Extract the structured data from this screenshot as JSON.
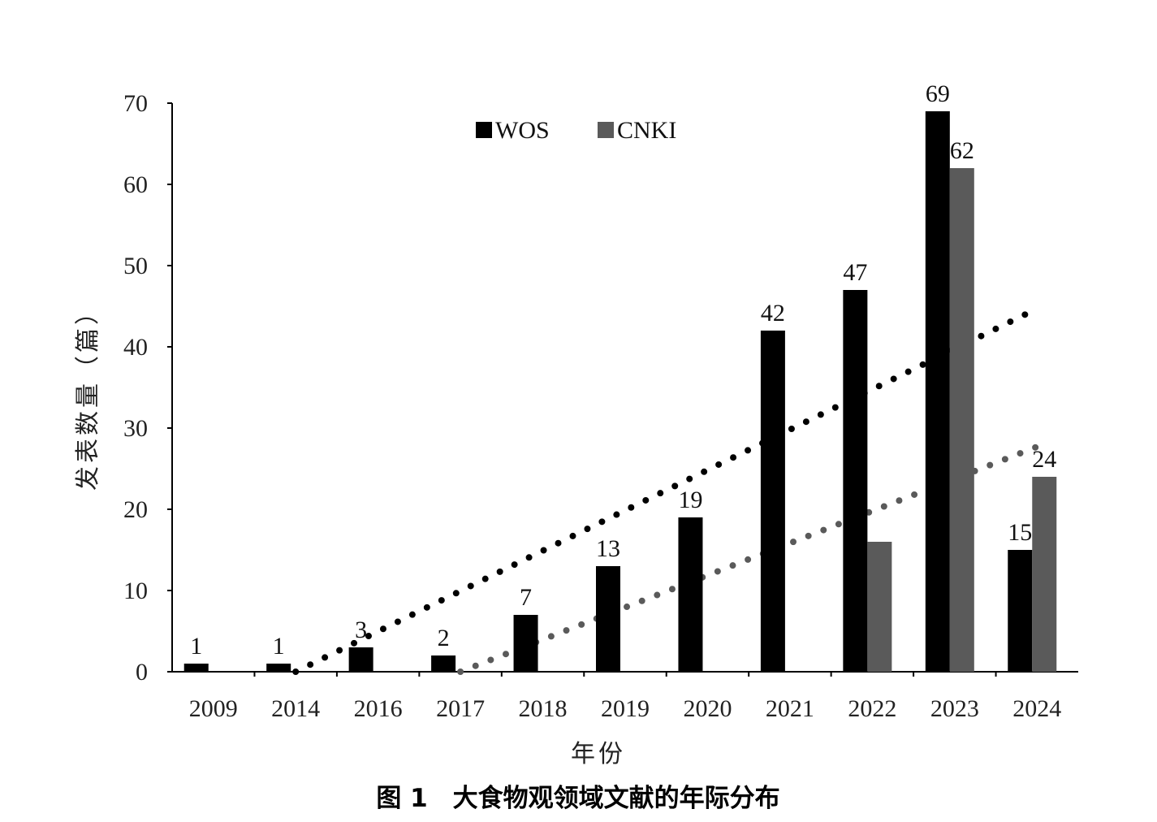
{
  "chart_data": {
    "type": "bar",
    "title": "",
    "caption": "图 1　大食物观领域文献的年际分布",
    "xlabel": "年份",
    "ylabel": "发表数量（篇）",
    "ylim": [
      0,
      70
    ],
    "yticks": [
      0,
      10,
      20,
      30,
      40,
      50,
      60,
      70
    ],
    "legend_position": "top",
    "grid": false,
    "categories": [
      "2009",
      "2014",
      "2016",
      "2017",
      "2018",
      "2019",
      "2020",
      "2021",
      "2022",
      "2023",
      "2024"
    ],
    "series": [
      {
        "name": "WOS",
        "color": "#000000",
        "values": [
          1,
          1,
          3,
          2,
          7,
          13,
          19,
          42,
          47,
          69,
          15
        ]
      },
      {
        "name": "CNKI",
        "color": "#5a5a5a",
        "values": [
          null,
          null,
          null,
          null,
          null,
          null,
          null,
          null,
          16,
          62,
          24
        ]
      }
    ],
    "data_labels": {
      "WOS": [
        "1",
        "1",
        "3",
        "2",
        "7",
        "13",
        "19",
        "42",
        "47",
        "69",
        "15"
      ],
      "CNKI": [
        null,
        null,
        null,
        null,
        null,
        null,
        null,
        null,
        null,
        "62",
        "24"
      ]
    },
    "trendlines": [
      {
        "series": "WOS",
        "style": "dotted",
        "color": "#000000",
        "points": [
          [
            "2014",
            0
          ],
          [
            "2024",
            44.7
          ]
        ]
      },
      {
        "series": "CNKI",
        "style": "dotted",
        "color": "#5a5a5a",
        "points": [
          [
            "2017",
            0
          ],
          [
            "2024",
            27.7
          ]
        ]
      }
    ]
  }
}
